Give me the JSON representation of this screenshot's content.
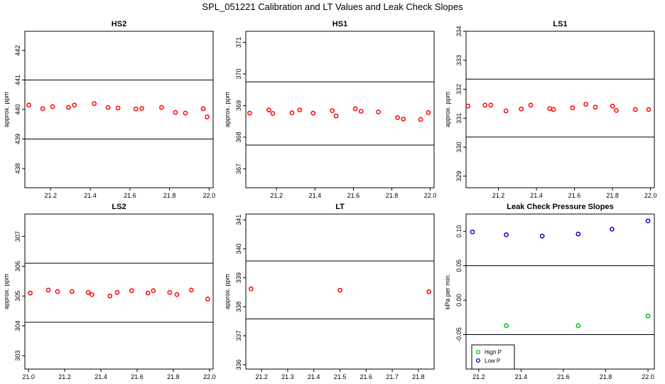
{
  "figure_title": "SPL_051221  Calibration and LT Values and Leak Check Slopes",
  "chart_data": [
    {
      "type": "scatter",
      "title": "HS2",
      "xlabel": "",
      "ylabel": "approx. ppm",
      "xlim": [
        21.07,
        22.02
      ],
      "ylim": [
        437.35,
        442.65
      ],
      "xticks": [
        21.2,
        21.4,
        21.6,
        21.8,
        22.0
      ],
      "xtick_labels": [
        "21.2",
        "21.4",
        "21.6",
        "21.8",
        "22.0"
      ],
      "yticks": [
        438,
        439,
        440,
        441,
        442
      ],
      "ytick_labels": [
        "438",
        "439",
        "440",
        "441",
        "442"
      ],
      "hlines": [
        441.0,
        439.0
      ],
      "grid": false,
      "series": [
        {
          "color": "#ff0000",
          "x": [
            21.09,
            21.16,
            21.21,
            21.29,
            21.32,
            21.42,
            21.49,
            21.54,
            21.63,
            21.66,
            21.76,
            21.83,
            21.88,
            21.97,
            21.99
          ],
          "y": [
            440.15,
            440.03,
            440.1,
            440.07,
            440.15,
            440.2,
            440.07,
            440.05,
            440.02,
            440.04,
            440.07,
            439.9,
            439.88,
            440.03,
            439.75
          ]
        }
      ]
    },
    {
      "type": "scatter",
      "title": "HS1",
      "xlabel": "",
      "ylabel": "approx. ppm",
      "xlim": [
        21.04,
        22.02
      ],
      "ylim": [
        366.4,
        371.35
      ],
      "xticks": [
        21.2,
        21.4,
        21.6,
        21.8,
        22.0
      ],
      "xtick_labels": [
        "21.2",
        "21.4",
        "21.6",
        "21.8",
        "22.0"
      ],
      "yticks": [
        367,
        368,
        369,
        370,
        371
      ],
      "ytick_labels": [
        "367",
        "368",
        "369",
        "370",
        "371"
      ],
      "hlines": [
        369.75,
        367.75
      ],
      "grid": false,
      "series": [
        {
          "color": "#ff0000",
          "x": [
            21.06,
            21.16,
            21.18,
            21.28,
            21.32,
            21.39,
            21.49,
            21.51,
            21.61,
            21.64,
            21.73,
            21.83,
            21.86,
            21.95,
            21.99
          ],
          "y": [
            368.76,
            368.86,
            368.75,
            368.77,
            368.86,
            368.76,
            368.84,
            368.67,
            368.9,
            368.82,
            368.8,
            368.62,
            368.57,
            368.56,
            368.78
          ]
        }
      ]
    },
    {
      "type": "scatter",
      "title": "LS1",
      "xlabel": "",
      "ylabel": "approx. ppm",
      "xlim": [
        21.03,
        22.02
      ],
      "ylim": [
        328.6,
        334.0
      ],
      "xticks": [
        21.2,
        21.4,
        21.6,
        21.8,
        22.0
      ],
      "xtick_labels": [
        "21.2",
        "21.4",
        "21.6",
        "21.8",
        "22.0"
      ],
      "yticks": [
        329,
        330,
        331,
        332,
        333,
        334
      ],
      "ytick_labels": [
        "329",
        "330",
        "331",
        "332",
        "333",
        "334"
      ],
      "hlines": [
        332.35,
        330.35
      ],
      "grid": false,
      "series": [
        {
          "color": "#ff0000",
          "x": [
            21.04,
            21.13,
            21.16,
            21.24,
            21.32,
            21.37,
            21.47,
            21.49,
            21.59,
            21.66,
            21.71,
            21.8,
            21.82,
            21.92,
            21.99
          ],
          "y": [
            331.42,
            331.45,
            331.45,
            331.25,
            331.32,
            331.45,
            331.33,
            331.3,
            331.36,
            331.48,
            331.38,
            331.42,
            331.27,
            331.3,
            331.3
          ]
        }
      ]
    },
    {
      "type": "scatter",
      "title": "LS2",
      "xlabel": "",
      "ylabel": "approx. ppm",
      "xlim": [
        20.98,
        22.02
      ],
      "ylim": [
        302.55,
        307.75
      ],
      "xticks": [
        21.0,
        21.2,
        21.4,
        21.6,
        21.8,
        22.0
      ],
      "xtick_labels": [
        "21.0",
        "21.2",
        "21.4",
        "21.6",
        "21.8",
        "22.0"
      ],
      "yticks": [
        303,
        304,
        305,
        306,
        307
      ],
      "ytick_labels": [
        "303",
        "304",
        "305",
        "306",
        "307"
      ],
      "hlines": [
        306.1,
        304.12
      ],
      "grid": false,
      "series": [
        {
          "color": "#ff0000",
          "x": [
            21.01,
            21.11,
            21.16,
            21.24,
            21.33,
            21.35,
            21.45,
            21.49,
            21.57,
            21.66,
            21.69,
            21.78,
            21.82,
            21.9,
            21.99
          ],
          "y": [
            305.1,
            305.2,
            305.15,
            305.15,
            305.12,
            305.05,
            305.0,
            305.12,
            305.18,
            305.1,
            305.18,
            305.12,
            305.05,
            305.2,
            304.9
          ]
        }
      ]
    },
    {
      "type": "scatter",
      "title": "LT",
      "xlabel": "",
      "ylabel": "approx. ppm",
      "xlim": [
        21.14,
        21.86
      ],
      "ylim": [
        335.85,
        341.2
      ],
      "xticks": [
        21.2,
        21.3,
        21.4,
        21.5,
        21.6,
        21.7,
        21.8
      ],
      "xtick_labels": [
        "21.2",
        "21.3",
        "21.4",
        "21.5",
        "21.6",
        "21.7",
        "21.8"
      ],
      "yticks": [
        336,
        337,
        338,
        339,
        340,
        341
      ],
      "ytick_labels": [
        "336",
        "337",
        "338",
        "339",
        "340",
        "341"
      ],
      "hlines": [
        339.58,
        337.58
      ],
      "grid": false,
      "series": [
        {
          "color": "#ff0000",
          "x": [
            21.16,
            21.5,
            21.84
          ],
          "y": [
            338.62,
            338.57,
            338.52
          ]
        }
      ]
    },
    {
      "type": "scatter",
      "title": "Leak Check Pressure Slopes",
      "xlabel": "",
      "ylabel": "kPa per min.",
      "xlim": [
        21.14,
        22.03
      ],
      "ylim": [
        -0.1,
        0.125
      ],
      "xticks": [
        21.2,
        21.4,
        21.6,
        21.8,
        22.0
      ],
      "xtick_labels": [
        "21.2",
        "21.4",
        "21.6",
        "21.8",
        "22.0"
      ],
      "yticks": [
        -0.05,
        0.0,
        0.05,
        0.1
      ],
      "ytick_labels": [
        "-0.05",
        "0.00",
        "0.05",
        "0.10"
      ],
      "hlines": [
        0.05,
        -0.05
      ],
      "grid": false,
      "legend": "bottom-left",
      "series": [
        {
          "name": "High P",
          "color": "#00bb00",
          "x": [
            21.33,
            21.67,
            22.0
          ],
          "y": [
            -0.037,
            -0.037,
            -0.023
          ]
        },
        {
          "name": "Low P",
          "color": "#0000cc",
          "x": [
            21.17,
            21.33,
            21.5,
            21.67,
            21.83,
            22.0
          ],
          "y": [
            0.099,
            0.095,
            0.093,
            0.096,
            0.103,
            0.115
          ]
        }
      ]
    }
  ]
}
